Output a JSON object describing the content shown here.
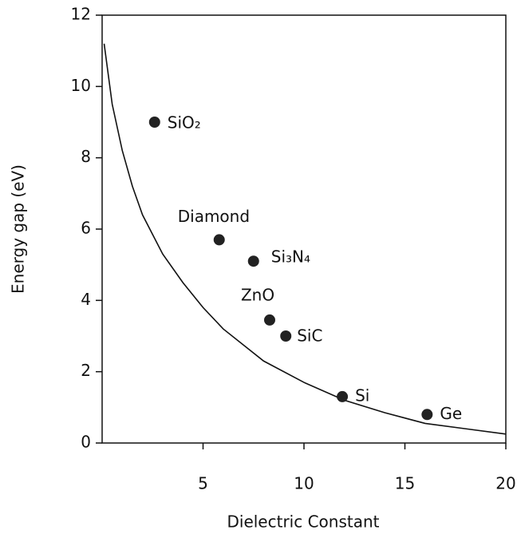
{
  "chart_data": {
    "type": "scatter",
    "xlabel": "Dielectric Constant",
    "ylabel": "Energy gap (eV)",
    "xlim": [
      0,
      20
    ],
    "ylim": [
      0,
      12
    ],
    "xticks": [
      5,
      10,
      15,
      20
    ],
    "yticks": [
      0,
      2,
      4,
      6,
      8,
      10,
      12
    ],
    "color": "#222",
    "points": {
      "labels": [
        "SiO₂",
        "Diamond",
        "Si₃N₄",
        "ZnO",
        "SiC",
        "Si",
        "Ge"
      ],
      "x": [
        2.6,
        5.8,
        7.5,
        8.3,
        9.1,
        11.9,
        16.1
      ],
      "y": [
        9.0,
        5.7,
        5.1,
        3.45,
        3.0,
        1.3,
        0.8
      ]
    },
    "curve": {
      "x": [
        0.1,
        0.5,
        1,
        1.5,
        2,
        3,
        4,
        5,
        6,
        8,
        10,
        12,
        14,
        16,
        18,
        20
      ],
      "y": [
        11.2,
        9.5,
        8.2,
        7.2,
        6.4,
        5.3,
        4.5,
        3.8,
        3.2,
        2.3,
        1.7,
        1.2,
        0.85,
        0.55,
        0.4,
        0.25
      ]
    }
  }
}
